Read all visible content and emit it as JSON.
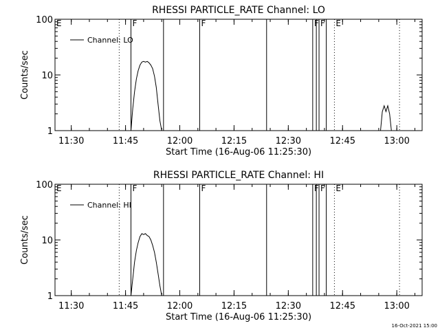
{
  "footer": {
    "timestamp": "16-Oct-2021 15:00"
  },
  "chart_data": [
    {
      "type": "line",
      "title": "RHESSI PARTICLE_RATE Channel: LO",
      "xlabel": "Start Time (16-Aug-06 11:25:30)",
      "ylabel": "Counts/sec",
      "y_scale": "log",
      "ylim": [
        1,
        100
      ],
      "x_tick_labels": [
        "11:30",
        "11:45",
        "12:00",
        "12:15",
        "12:30",
        "12:45",
        "13:00"
      ],
      "y_tick_labels": [
        "1",
        "10",
        "100"
      ],
      "grid": false,
      "legend": {
        "position": "top-left",
        "entries": [
          "Channel: LO"
        ]
      },
      "series": [
        {
          "name": "Channel: LO",
          "x": [
            "11:46:30",
            "11:47:00",
            "11:47:30",
            "11:48:00",
            "11:48:30",
            "11:49:00",
            "11:49:30",
            "11:50:00",
            "11:50:30",
            "11:51:00",
            "11:51:30",
            "11:52:00",
            "11:52:30",
            "11:53:00",
            "11:53:30",
            "11:54:00",
            "11:54:30",
            "11:55:00",
            "12:55:30",
            "12:56:00",
            "12:56:30",
            "12:57:00",
            "12:57:30",
            "12:58:00",
            "12:58:30"
          ],
          "values": [
            1.0,
            2.5,
            5.0,
            8.5,
            12,
            15,
            17,
            17.5,
            17,
            17.5,
            16.5,
            15,
            13,
            9.5,
            6,
            3,
            1.5,
            1.0,
            1.0,
            2.2,
            2.8,
            2.2,
            2.8,
            2.0,
            1.0
          ]
        }
      ],
      "annotations": [
        {
          "label": "E",
          "time": "11:25:30",
          "style": "none"
        },
        {
          "label": "",
          "time": "11:43:15",
          "style": "dotted"
        },
        {
          "label": "F",
          "time": "11:46:30",
          "style": "solid"
        },
        {
          "label": "",
          "time": "11:55:30",
          "style": "solid"
        },
        {
          "label": "F",
          "time": "12:05:30",
          "style": "solid"
        },
        {
          "label": "",
          "time": "12:24:00",
          "style": "solid"
        },
        {
          "label": "F",
          "time": "12:36:45",
          "style": "solid"
        },
        {
          "label": "",
          "time": "12:37:45",
          "style": "solid"
        },
        {
          "label": "F",
          "time": "12:38:30",
          "style": "solid"
        },
        {
          "label": "",
          "time": "12:40:30",
          "style": "solid"
        },
        {
          "label": "E",
          "time": "12:42:45",
          "style": "dotted"
        },
        {
          "label": "",
          "time": "13:00:45",
          "style": "dotted"
        }
      ]
    },
    {
      "type": "line",
      "title": "RHESSI PARTICLE_RATE Channel: HI",
      "xlabel": "Start Time (16-Aug-06 11:25:30)",
      "ylabel": "Counts/sec",
      "y_scale": "log",
      "ylim": [
        1,
        100
      ],
      "x_tick_labels": [
        "11:30",
        "11:45",
        "12:00",
        "12:15",
        "12:30",
        "12:45",
        "13:00"
      ],
      "y_tick_labels": [
        "1",
        "10",
        "100"
      ],
      "grid": false,
      "legend": {
        "position": "top-left",
        "entries": [
          "Channel: HI"
        ]
      },
      "series": [
        {
          "name": "Channel: HI",
          "x": [
            "11:46:30",
            "11:47:00",
            "11:47:30",
            "11:48:00",
            "11:48:30",
            "11:49:00",
            "11:49:30",
            "11:50:00",
            "11:50:30",
            "11:51:00",
            "11:51:30",
            "11:52:00",
            "11:52:30",
            "11:53:00",
            "11:53:30",
            "11:54:00",
            "11:54:30",
            "11:55:00"
          ],
          "values": [
            1.0,
            2.0,
            4.0,
            6.5,
            9.0,
            11.5,
            13,
            12.5,
            13,
            12,
            11.5,
            10,
            8,
            6,
            4,
            2.5,
            1.5,
            1.0
          ]
        }
      ],
      "annotations": [
        {
          "label": "E",
          "time": "11:25:30",
          "style": "none"
        },
        {
          "label": "",
          "time": "11:43:15",
          "style": "dotted"
        },
        {
          "label": "F",
          "time": "11:46:30",
          "style": "solid"
        },
        {
          "label": "",
          "time": "11:55:30",
          "style": "solid"
        },
        {
          "label": "F",
          "time": "12:05:30",
          "style": "solid"
        },
        {
          "label": "",
          "time": "12:24:00",
          "style": "solid"
        },
        {
          "label": "F",
          "time": "12:36:45",
          "style": "solid"
        },
        {
          "label": "",
          "time": "12:37:45",
          "style": "solid"
        },
        {
          "label": "F",
          "time": "12:38:30",
          "style": "solid"
        },
        {
          "label": "",
          "time": "12:40:30",
          "style": "solid"
        },
        {
          "label": "E",
          "time": "12:42:45",
          "style": "dotted"
        },
        {
          "label": "",
          "time": "13:00:45",
          "style": "dotted"
        }
      ]
    }
  ]
}
